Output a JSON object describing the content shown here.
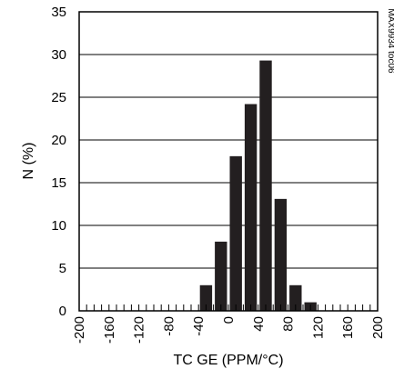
{
  "chart_data": {
    "type": "bar",
    "xlabel": "TC GE (PPM/°C)",
    "ylabel": "N (%)",
    "side_note": "MAX9934 toc06",
    "xlim": [
      -200,
      200
    ],
    "ylim": [
      0,
      35
    ],
    "x_ticks": [
      -200,
      -160,
      -120,
      -80,
      -40,
      0,
      40,
      80,
      120,
      160,
      200
    ],
    "x_tick_labels": [
      "-200",
      "-160",
      "-120",
      "-80",
      "-40",
      "0",
      "40",
      "80",
      "120",
      "160",
      "200"
    ],
    "y_ticks": [
      0,
      5,
      10,
      15,
      20,
      25,
      30,
      35
    ],
    "y_tick_labels": [
      "0",
      "5",
      "10",
      "15",
      "20",
      "25",
      "30",
      "35"
    ],
    "grid": "horizontal",
    "bin_width": 20,
    "bins": [
      {
        "x": -30,
        "value": 3.0
      },
      {
        "x": -10,
        "value": 8.1
      },
      {
        "x": 10,
        "value": 18.1
      },
      {
        "x": 30,
        "value": 24.2
      },
      {
        "x": 50,
        "value": 29.3
      },
      {
        "x": 70,
        "value": 13.1
      },
      {
        "x": 90,
        "value": 3.0
      },
      {
        "x": 110,
        "value": 1.0
      }
    ]
  }
}
